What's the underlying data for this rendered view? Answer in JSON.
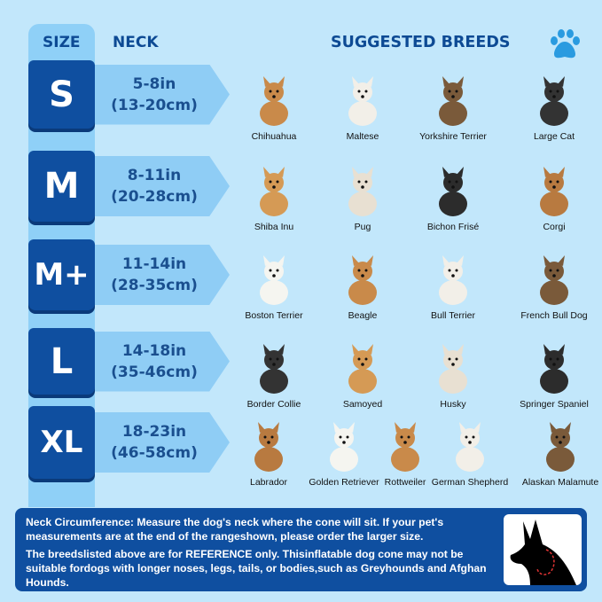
{
  "header": {
    "size": "SIZE",
    "neck": "NECK",
    "breeds": "SUGGESTED BREEDS",
    "paw_icon": "paw-icon"
  },
  "colors": {
    "background": "#c2e7fb",
    "dark_blue": "#0f4fa0",
    "light_blue": "#8fcdf5"
  },
  "rows": [
    {
      "size": "S",
      "in": "5-8in",
      "cm": "(13-20cm)",
      "breeds": [
        "Chihuahua",
        "Maltese",
        "Yorkshire Terrier",
        "Large Cat"
      ]
    },
    {
      "size": "M",
      "in": "8-11in",
      "cm": "(20-28cm)",
      "breeds": [
        "Shiba Inu",
        "Pug",
        "Bichon Frisé",
        "Corgi"
      ]
    },
    {
      "size": "M+",
      "in": "11-14in",
      "cm": "(28-35cm)",
      "breeds": [
        "Boston Terrier",
        "Beagle",
        "Bull Terrier",
        "French Bull Dog"
      ]
    },
    {
      "size": "L",
      "in": "14-18in",
      "cm": "(35-46cm)",
      "breeds": [
        "Border Collie",
        "Samoyed",
        "Husky",
        "Springer Spaniel"
      ]
    },
    {
      "size": "XL",
      "in": "18-23in",
      "cm": "(46-58cm)",
      "breeds": [
        "Labrador",
        "Golden Retriever",
        "Rottweiler",
        "German Shepherd",
        "Alaskan Malamute"
      ]
    }
  ],
  "info": {
    "p1": "Neck Circumference: Measure the dog's neck where the cone will sit. If your pet's measurements are at the end of the rangeshown, please order the larger size.",
    "p2": "The breedslisted above are for REFERENCE only. Thisinflatable dog cone may not be suitable fordogs with longer noses, legs, tails, or bodies,such as Greyhounds and Afghan Hounds."
  }
}
